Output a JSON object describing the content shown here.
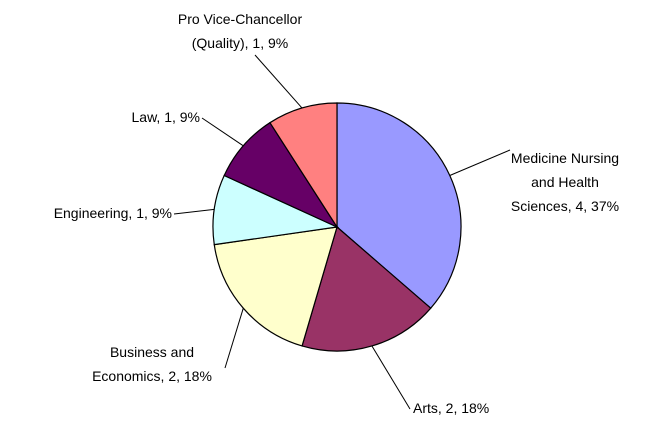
{
  "chart_data": {
    "type": "pie",
    "values": [
      4,
      2,
      2,
      1,
      1,
      1
    ],
    "value_labels": [
      "Medicine Nursing and Health Sciences, 4, 37%",
      "Arts, 2, 18%",
      "Business and Economics, 2, 18%",
      "Engineering, 1, 9%",
      "Law, 1, 9%",
      "Pro Vice-Chancellor (Quality), 1, 9%"
    ],
    "colors": [
      "#9999ff",
      "#993366",
      "#ffffcc",
      "#ccffff",
      "#660066",
      "#ff8080"
    ]
  }
}
